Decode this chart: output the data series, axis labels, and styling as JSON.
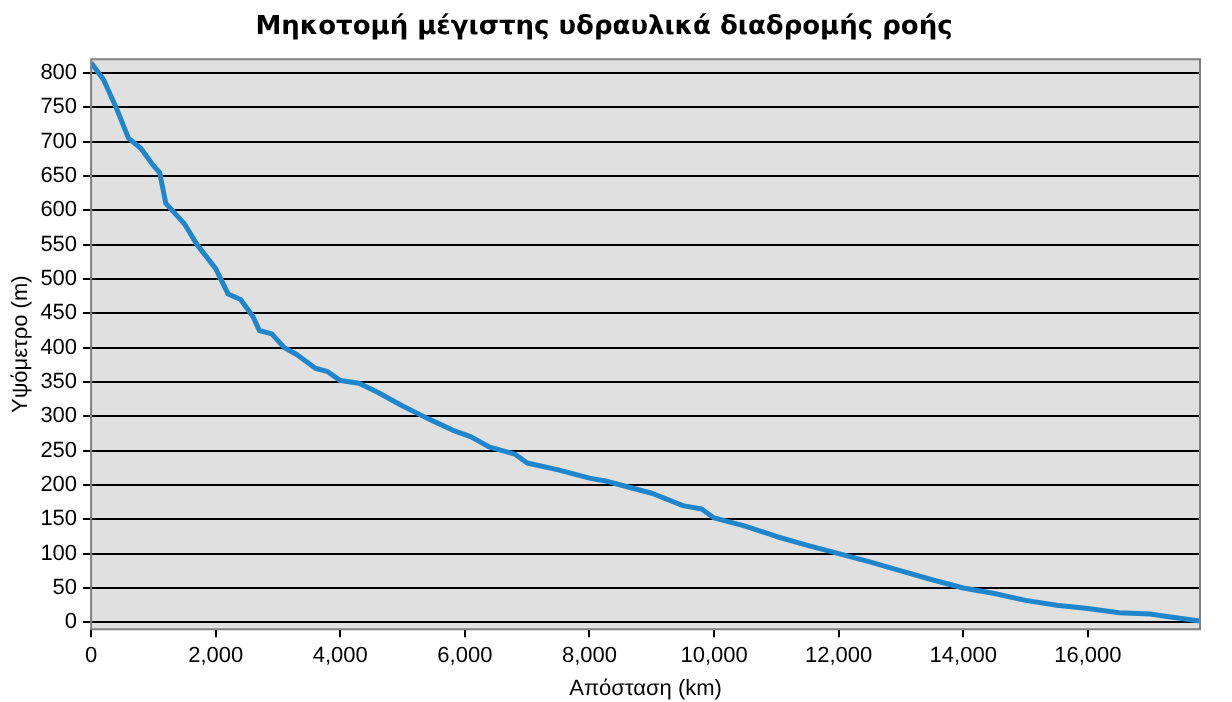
{
  "chart_data": {
    "type": "line",
    "title": "Μηκοτομή μέγιστης υδραυλικά διαδρομής ροής",
    "xlabel": "Απόσταση (km)",
    "ylabel": "Υψόμετρο (m)",
    "x": [
      0,
      200,
      400,
      600,
      800,
      1000,
      1100,
      1200,
      1400,
      1500,
      1700,
      2000,
      2200,
      2400,
      2600,
      2700,
      2900,
      3100,
      3300,
      3600,
      3800,
      4000,
      4300,
      4600,
      5000,
      5400,
      5800,
      6100,
      6400,
      6800,
      7000,
      7500,
      8000,
      8300,
      8500,
      9000,
      9500,
      9800,
      10000,
      10500,
      11000,
      11500,
      12000,
      12500,
      13000,
      13500,
      14000,
      14500,
      15000,
      15500,
      16000,
      16500,
      17000,
      17300,
      17800
    ],
    "series": [
      {
        "color": "#1f86cc",
        "values": [
          815,
          790,
          750,
          705,
          690,
          665,
          655,
          610,
          590,
          580,
          550,
          515,
          478,
          470,
          445,
          425,
          420,
          400,
          390,
          370,
          365,
          352,
          348,
          335,
          315,
          297,
          280,
          270,
          255,
          245,
          232,
          222,
          210,
          205,
          200,
          188,
          170,
          165,
          152,
          140,
          125,
          112,
          100,
          88,
          75,
          62,
          50,
          42,
          32,
          25,
          20,
          14,
          12,
          8,
          2
        ]
      }
    ],
    "xlim": [
      0,
      17800
    ],
    "ylim": [
      -10,
      820
    ],
    "xticks": [
      0,
      {
        "value": 2000,
        "label": "2,000"
      },
      {
        "value": 4000,
        "label": "4,000"
      },
      {
        "value": 6000,
        "label": "6,000"
      },
      {
        "value": 8000,
        "label": "8,000"
      },
      {
        "value": 10000,
        "label": "10,000"
      },
      {
        "value": 12000,
        "label": "12,000"
      },
      {
        "value": 14000,
        "label": "14,000"
      },
      {
        "value": 16000,
        "label": "16,000"
      }
    ],
    "yticks": [
      0,
      50,
      100,
      150,
      200,
      250,
      300,
      350,
      400,
      450,
      500,
      550,
      600,
      650,
      700,
      750,
      800
    ],
    "grid": "y",
    "legend": false,
    "marker": "none",
    "line_style": "solid"
  }
}
